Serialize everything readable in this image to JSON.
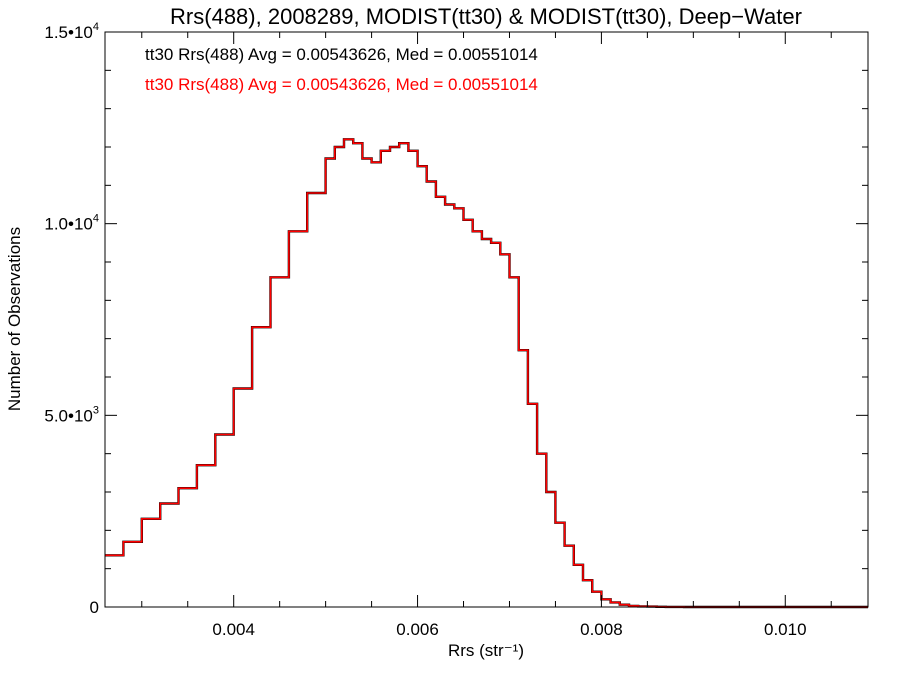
{
  "chart_data": {
    "type": "line",
    "title": "Rrs(488), 2008289, MODIST(tt30) & MODIST(tt30), Deep−Water",
    "xlabel": "Rrs (str⁻¹)",
    "ylabel": "Number of Observations",
    "xlim": [
      0.0026,
      0.0109
    ],
    "ylim": [
      0,
      15000
    ],
    "x_ticks": [
      {
        "value": 0.004,
        "label": "0.004"
      },
      {
        "value": 0.006,
        "label": "0.006"
      },
      {
        "value": 0.008,
        "label": "0.008"
      },
      {
        "value": 0.01,
        "label": "0.010"
      }
    ],
    "y_ticks": [
      {
        "value": 0,
        "base": "0",
        "exp": ""
      },
      {
        "value": 5000,
        "base": "5.0•10",
        "exp": "3"
      },
      {
        "value": 10000,
        "base": "1.0•10",
        "exp": "4"
      },
      {
        "value": 15000,
        "base": "1.5•10",
        "exp": "4"
      }
    ],
    "legend_position": "top-left",
    "series": [
      {
        "name": "tt30 Rrs(488) Avg = 0.00543626, Med = 0.00551014",
        "color": "#000000",
        "x": [
          0.0026,
          0.0028,
          0.003,
          0.0032,
          0.0034,
          0.0036,
          0.0038,
          0.004,
          0.0042,
          0.0044,
          0.0046,
          0.0048,
          0.005,
          0.0051,
          0.0052,
          0.0053,
          0.0054,
          0.0055,
          0.0056,
          0.0057,
          0.0058,
          0.0059,
          0.006,
          0.0061,
          0.0062,
          0.0063,
          0.0064,
          0.0065,
          0.0066,
          0.0067,
          0.0068,
          0.0069,
          0.007,
          0.0071,
          0.0072,
          0.0073,
          0.0074,
          0.0075,
          0.0076,
          0.0077,
          0.0078,
          0.0079,
          0.008,
          0.0081,
          0.0082,
          0.0083,
          0.0084,
          0.0085,
          0.0086,
          0.0087,
          0.0088,
          0.0089,
          0.009,
          0.0092,
          0.0094,
          0.0096,
          0.0098,
          0.01,
          0.0102,
          0.0104,
          0.0106,
          0.0108,
          0.0109
        ],
        "y": [
          1350,
          1700,
          2300,
          2700,
          3100,
          3700,
          4500,
          5700,
          7300,
          8600,
          9800,
          10800,
          11700,
          12000,
          12200,
          12100,
          11700,
          11600,
          11900,
          12000,
          12100,
          11900,
          11500,
          11100,
          10700,
          10500,
          10400,
          10100,
          9800,
          9600,
          9500,
          9200,
          8600,
          6700,
          5300,
          4000,
          3000,
          2200,
          1600,
          1100,
          700,
          400,
          200,
          120,
          60,
          30,
          15,
          10,
          5,
          3,
          2,
          1,
          1,
          0,
          0,
          0,
          0,
          0,
          0,
          0,
          0,
          0,
          0
        ]
      },
      {
        "name": "tt30 Rrs(488) Avg = 0.00543626, Med = 0.00551014",
        "color": "#ff0000",
        "x": [
          0.0026,
          0.0028,
          0.003,
          0.0032,
          0.0034,
          0.0036,
          0.0038,
          0.004,
          0.0042,
          0.0044,
          0.0046,
          0.0048,
          0.005,
          0.0051,
          0.0052,
          0.0053,
          0.0054,
          0.0055,
          0.0056,
          0.0057,
          0.0058,
          0.0059,
          0.006,
          0.0061,
          0.0062,
          0.0063,
          0.0064,
          0.0065,
          0.0066,
          0.0067,
          0.0068,
          0.0069,
          0.007,
          0.0071,
          0.0072,
          0.0073,
          0.0074,
          0.0075,
          0.0076,
          0.0077,
          0.0078,
          0.0079,
          0.008,
          0.0081,
          0.0082,
          0.0083,
          0.0084,
          0.0085,
          0.0086,
          0.0087,
          0.0088,
          0.0089,
          0.009,
          0.0092,
          0.0094,
          0.0096,
          0.0098,
          0.01,
          0.0102,
          0.0104,
          0.0106,
          0.0108,
          0.0109
        ],
        "y": [
          1350,
          1700,
          2300,
          2700,
          3100,
          3700,
          4500,
          5700,
          7300,
          8600,
          9800,
          10800,
          11700,
          12000,
          12200,
          12100,
          11700,
          11600,
          11900,
          12000,
          12100,
          11900,
          11500,
          11100,
          10700,
          10500,
          10400,
          10100,
          9800,
          9600,
          9500,
          9200,
          8600,
          6700,
          5300,
          4000,
          3000,
          2200,
          1600,
          1100,
          700,
          400,
          200,
          120,
          60,
          30,
          15,
          10,
          5,
          3,
          2,
          1,
          1,
          0,
          0,
          0,
          0,
          0,
          0,
          0,
          0,
          0,
          0
        ]
      }
    ]
  }
}
